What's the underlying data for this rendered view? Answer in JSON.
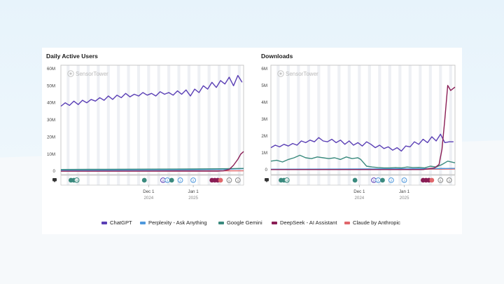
{
  "colors": {
    "ChatGPT": "#5a3fb5",
    "Perplexity": "#4f98dc",
    "Gemini": "#3a8a7e",
    "DeepSeek": "#8a1d55",
    "Claude": "#e0676b"
  },
  "legend": [
    {
      "label": "ChatGPT",
      "color_key": "ChatGPT"
    },
    {
      "label": "Perplexity - Ask Anything",
      "color_key": "Perplexity"
    },
    {
      "label": "Google Gemini",
      "color_key": "Gemini"
    },
    {
      "label": "DeepSeek - AI Assistant",
      "color_key": "DeepSeek"
    },
    {
      "label": "Claude by Anthropic",
      "color_key": "Claude"
    }
  ],
  "watermark": "SensorTower",
  "chart_data": [
    {
      "type": "line",
      "title": "Daily Active Users",
      "ylim": [
        -2000000,
        62000000
      ],
      "yticks": [
        0,
        10000000,
        20000000,
        30000000,
        40000000,
        50000000,
        60000000
      ],
      "ytick_labels": [
        "0",
        "10M",
        "20M",
        "30M",
        "40M",
        "50M",
        "60M"
      ],
      "x_range": [
        "2024-10-01",
        "2025-02-05"
      ],
      "xticks": [
        {
          "date": "2024-12-01",
          "label": "Dec 1",
          "year": "2024"
        },
        {
          "date": "2025-01-01",
          "label": "Jan 1",
          "year": "2025"
        }
      ],
      "events_icon": "chat-bubble-icon",
      "events": [
        {
          "date": "2024-10-08",
          "color_key": "Gemini",
          "label": ""
        },
        {
          "date": "2024-10-10",
          "color_key": "Gemini",
          "label": ""
        },
        {
          "date": "2024-10-12",
          "color_key": "Gemini",
          "label": "10"
        },
        {
          "date": "2024-11-28",
          "color_key": "Gemini",
          "label": ""
        },
        {
          "date": "2024-12-11",
          "color_key": "ChatGPT",
          "label": "2"
        },
        {
          "date": "2024-12-14",
          "color_key": "Perplexity",
          "label": "2"
        },
        {
          "date": "2024-12-17",
          "color_key": "Gemini",
          "label": ""
        },
        {
          "date": "2024-12-23",
          "color_key": "Perplexity",
          "label": "2"
        },
        {
          "date": "2025-01-01",
          "color_key": "Perplexity",
          "label": "2"
        },
        {
          "date": "2025-01-14",
          "color_key": "DeepSeek",
          "label": ""
        },
        {
          "date": "2025-01-16",
          "color_key": "DeepSeek",
          "label": ""
        },
        {
          "date": "2025-01-18",
          "color_key": "DeepSeek",
          "label": ""
        },
        {
          "date": "2025-01-20",
          "color_key": "Claude",
          "label": ""
        },
        {
          "date": "2025-01-26",
          "color_key": "grey",
          "label": "5"
        },
        {
          "date": "2025-02-01",
          "color_key": "grey",
          "label": "3"
        }
      ],
      "series": [
        {
          "name": "ChatGPT",
          "color_key": "ChatGPT",
          "dates": [
            "2024-10-01",
            "2024-10-04",
            "2024-10-07",
            "2024-10-10",
            "2024-10-13",
            "2024-10-16",
            "2024-10-19",
            "2024-10-22",
            "2024-10-25",
            "2024-10-28",
            "2024-10-31",
            "2024-11-03",
            "2024-11-06",
            "2024-11-09",
            "2024-11-12",
            "2024-11-15",
            "2024-11-18",
            "2024-11-21",
            "2024-11-24",
            "2024-11-27",
            "2024-11-30",
            "2024-12-03",
            "2024-12-06",
            "2024-12-09",
            "2024-12-12",
            "2024-12-15",
            "2024-12-18",
            "2024-12-21",
            "2024-12-24",
            "2024-12-27",
            "2024-12-30",
            "2025-01-02",
            "2025-01-05",
            "2025-01-08",
            "2025-01-11",
            "2025-01-14",
            "2025-01-17",
            "2025-01-20",
            "2025-01-23",
            "2025-01-26",
            "2025-01-29",
            "2025-02-01",
            "2025-02-04"
          ],
          "values": [
            38000000,
            40000000,
            38500000,
            41000000,
            39000000,
            41500000,
            40000000,
            42000000,
            41000000,
            43000000,
            41500000,
            44000000,
            42000000,
            44500000,
            43000000,
            45500000,
            43500000,
            45000000,
            44000000,
            46000000,
            44500000,
            45500000,
            44000000,
            46500000,
            45000000,
            46000000,
            44500000,
            47000000,
            45000000,
            47500000,
            44000000,
            48000000,
            46000000,
            50000000,
            48000000,
            52000000,
            49000000,
            53000000,
            51000000,
            55000000,
            50000000,
            56000000,
            52000000
          ]
        },
        {
          "name": "Perplexity - Ask Anything",
          "color_key": "Perplexity",
          "dates": [
            "2024-10-01",
            "2024-11-01",
            "2024-12-01",
            "2025-01-01",
            "2025-01-20",
            "2025-02-05"
          ],
          "values": [
            500000,
            600000,
            700000,
            800000,
            1000000,
            1500000
          ]
        },
        {
          "name": "Google Gemini",
          "color_key": "Gemini",
          "dates": [
            "2024-10-01",
            "2024-11-01",
            "2024-12-01",
            "2025-01-01",
            "2025-01-20",
            "2025-02-05"
          ],
          "values": [
            1000000,
            1100000,
            1200000,
            1300000,
            1400000,
            1600000
          ]
        },
        {
          "name": "DeepSeek - AI Assistant",
          "color_key": "DeepSeek",
          "dates": [
            "2024-10-01",
            "2025-01-18",
            "2025-01-22",
            "2025-01-26",
            "2025-01-29",
            "2025-02-01",
            "2025-02-03",
            "2025-02-05"
          ],
          "values": [
            0,
            0,
            200000,
            1000000,
            3500000,
            7000000,
            10000000,
            11500000
          ]
        },
        {
          "name": "Claude by Anthropic",
          "color_key": "Claude",
          "dates": [
            "2024-10-01",
            "2024-12-01",
            "2025-02-05"
          ],
          "values": [
            100000,
            150000,
            200000
          ]
        }
      ]
    },
    {
      "type": "line",
      "title": "Downloads",
      "ylim": [
        -300000,
        6200000
      ],
      "yticks": [
        0,
        1000000,
        2000000,
        3000000,
        4000000,
        5000000,
        6000000
      ],
      "ytick_labels": [
        "0",
        "1M",
        "2M",
        "3M",
        "4M",
        "5M",
        "6M"
      ],
      "x_range": [
        "2024-10-01",
        "2025-02-05"
      ],
      "xticks": [
        {
          "date": "2024-12-01",
          "label": "Dec 1",
          "year": "2024"
        },
        {
          "date": "2025-01-01",
          "label": "Jan 1",
          "year": "2025"
        }
      ],
      "events_icon": "chat-bubble-icon",
      "events": [
        {
          "date": "2024-10-08",
          "color_key": "Gemini",
          "label": ""
        },
        {
          "date": "2024-10-10",
          "color_key": "Gemini",
          "label": ""
        },
        {
          "date": "2024-10-12",
          "color_key": "Gemini",
          "label": "10"
        },
        {
          "date": "2024-11-28",
          "color_key": "Gemini",
          "label": ""
        },
        {
          "date": "2024-12-11",
          "color_key": "ChatGPT",
          "label": "2"
        },
        {
          "date": "2024-12-14",
          "color_key": "Perplexity",
          "label": "2"
        },
        {
          "date": "2024-12-17",
          "color_key": "Gemini",
          "label": ""
        },
        {
          "date": "2024-12-23",
          "color_key": "Perplexity",
          "label": "2"
        },
        {
          "date": "2025-01-01",
          "color_key": "Perplexity",
          "label": "2"
        },
        {
          "date": "2025-01-14",
          "color_key": "DeepSeek",
          "label": ""
        },
        {
          "date": "2025-01-16",
          "color_key": "DeepSeek",
          "label": ""
        },
        {
          "date": "2025-01-18",
          "color_key": "DeepSeek",
          "label": ""
        },
        {
          "date": "2025-01-20",
          "color_key": "Claude",
          "label": ""
        },
        {
          "date": "2025-01-26",
          "color_key": "grey",
          "label": "5"
        },
        {
          "date": "2025-02-01",
          "color_key": "grey",
          "label": "3"
        }
      ],
      "series": [
        {
          "name": "ChatGPT",
          "color_key": "ChatGPT",
          "dates": [
            "2024-10-01",
            "2024-10-04",
            "2024-10-07",
            "2024-10-10",
            "2024-10-13",
            "2024-10-16",
            "2024-10-19",
            "2024-10-22",
            "2024-10-25",
            "2024-10-28",
            "2024-10-31",
            "2024-11-03",
            "2024-11-06",
            "2024-11-09",
            "2024-11-12",
            "2024-11-15",
            "2024-11-18",
            "2024-11-21",
            "2024-11-24",
            "2024-11-27",
            "2024-11-30",
            "2024-12-03",
            "2024-12-06",
            "2024-12-09",
            "2024-12-12",
            "2024-12-15",
            "2024-12-18",
            "2024-12-21",
            "2024-12-24",
            "2024-12-27",
            "2024-12-30",
            "2025-01-02",
            "2025-01-05",
            "2025-01-08",
            "2025-01-11",
            "2025-01-14",
            "2025-01-17",
            "2025-01-20",
            "2025-01-23",
            "2025-01-26",
            "2025-01-29",
            "2025-02-01",
            "2025-02-04"
          ],
          "values": [
            1300000,
            1450000,
            1350000,
            1500000,
            1400000,
            1550000,
            1450000,
            1700000,
            1600000,
            1750000,
            1650000,
            1900000,
            1700000,
            1650000,
            1800000,
            1600000,
            1750000,
            1500000,
            1700000,
            1450000,
            1600000,
            1400000,
            1650000,
            1500000,
            1300000,
            1450000,
            1250000,
            1350000,
            1150000,
            1300000,
            1100000,
            1400000,
            1350000,
            1650000,
            1500000,
            1800000,
            1600000,
            1950000,
            1700000,
            2100000,
            1600000,
            1650000,
            1650000
          ]
        },
        {
          "name": "Perplexity - Ask Anything",
          "color_key": "Perplexity",
          "dates": [
            "2024-10-01",
            "2024-11-15",
            "2024-12-15",
            "2025-01-15",
            "2025-02-05"
          ],
          "values": [
            20000,
            30000,
            40000,
            50000,
            70000
          ]
        },
        {
          "name": "Google Gemini",
          "color_key": "Gemini",
          "dates": [
            "2024-10-01",
            "2024-10-05",
            "2024-10-09",
            "2024-10-13",
            "2024-10-17",
            "2024-10-21",
            "2024-10-25",
            "2024-10-29",
            "2024-11-02",
            "2024-11-06",
            "2024-11-10",
            "2024-11-14",
            "2024-11-18",
            "2024-11-22",
            "2024-11-26",
            "2024-11-30",
            "2024-12-02",
            "2024-12-06",
            "2024-12-10",
            "2024-12-14",
            "2024-12-18",
            "2024-12-22",
            "2024-12-26",
            "2024-12-30",
            "2025-01-03",
            "2025-01-07",
            "2025-01-11",
            "2025-01-15",
            "2025-01-19",
            "2025-01-23",
            "2025-01-27",
            "2025-01-31",
            "2025-02-05"
          ],
          "values": [
            500000,
            550000,
            450000,
            600000,
            700000,
            850000,
            700000,
            650000,
            750000,
            700000,
            650000,
            700000,
            600000,
            750000,
            650000,
            700000,
            600000,
            200000,
            150000,
            120000,
            100000,
            100000,
            120000,
            100000,
            150000,
            120000,
            130000,
            100000,
            200000,
            150000,
            300000,
            500000,
            400000
          ]
        },
        {
          "name": "DeepSeek - AI Assistant",
          "color_key": "DeepSeek",
          "dates": [
            "2024-10-01",
            "2025-01-14",
            "2025-01-18",
            "2025-01-22",
            "2025-01-25",
            "2025-01-27",
            "2025-01-29",
            "2025-01-31",
            "2025-02-02",
            "2025-02-05"
          ],
          "values": [
            0,
            0,
            50000,
            100000,
            300000,
            1200000,
            3000000,
            5000000,
            4700000,
            4900000
          ]
        },
        {
          "name": "Claude by Anthropic",
          "color_key": "Claude",
          "dates": [
            "2024-10-01",
            "2024-12-01",
            "2025-01-20",
            "2025-02-05"
          ],
          "values": [
            10000,
            15000,
            20000,
            30000
          ]
        }
      ]
    }
  ]
}
